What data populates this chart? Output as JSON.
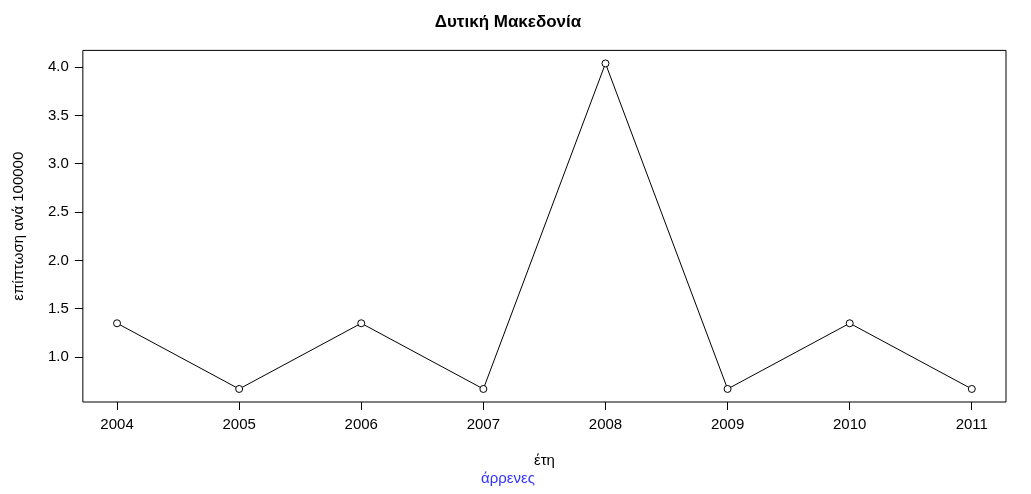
{
  "chart_data": {
    "type": "line",
    "title": "Δυτική Μακεδονία",
    "subtitle": "άρρενες",
    "xlabel": "έτη",
    "ylabel": "επίπτωση ανά 100000",
    "x": [
      2004,
      2005,
      2006,
      2007,
      2008,
      2009,
      2010,
      2011
    ],
    "series": [
      {
        "color": "#000000",
        "values": [
          1.35,
          0.67,
          1.35,
          0.67,
          4.04,
          0.67,
          1.35,
          0.67
        ]
      }
    ],
    "xlim": [
      2003.72,
      2011.28
    ],
    "xticks": [
      2004,
      2005,
      2006,
      2007,
      2008,
      2009,
      2010,
      2011
    ],
    "ylim": [
      0.535,
      4.175
    ],
    "yticks": [
      {
        "value": 1,
        "label": "1.0"
      },
      1.5,
      {
        "value": 2,
        "label": "2.0"
      },
      2.5,
      {
        "value": 3,
        "label": "3.0"
      },
      3.5,
      {
        "value": 4,
        "label": "4.0"
      }
    ],
    "grid": false,
    "legend": false,
    "marker": "circle",
    "line_style": "solid"
  }
}
